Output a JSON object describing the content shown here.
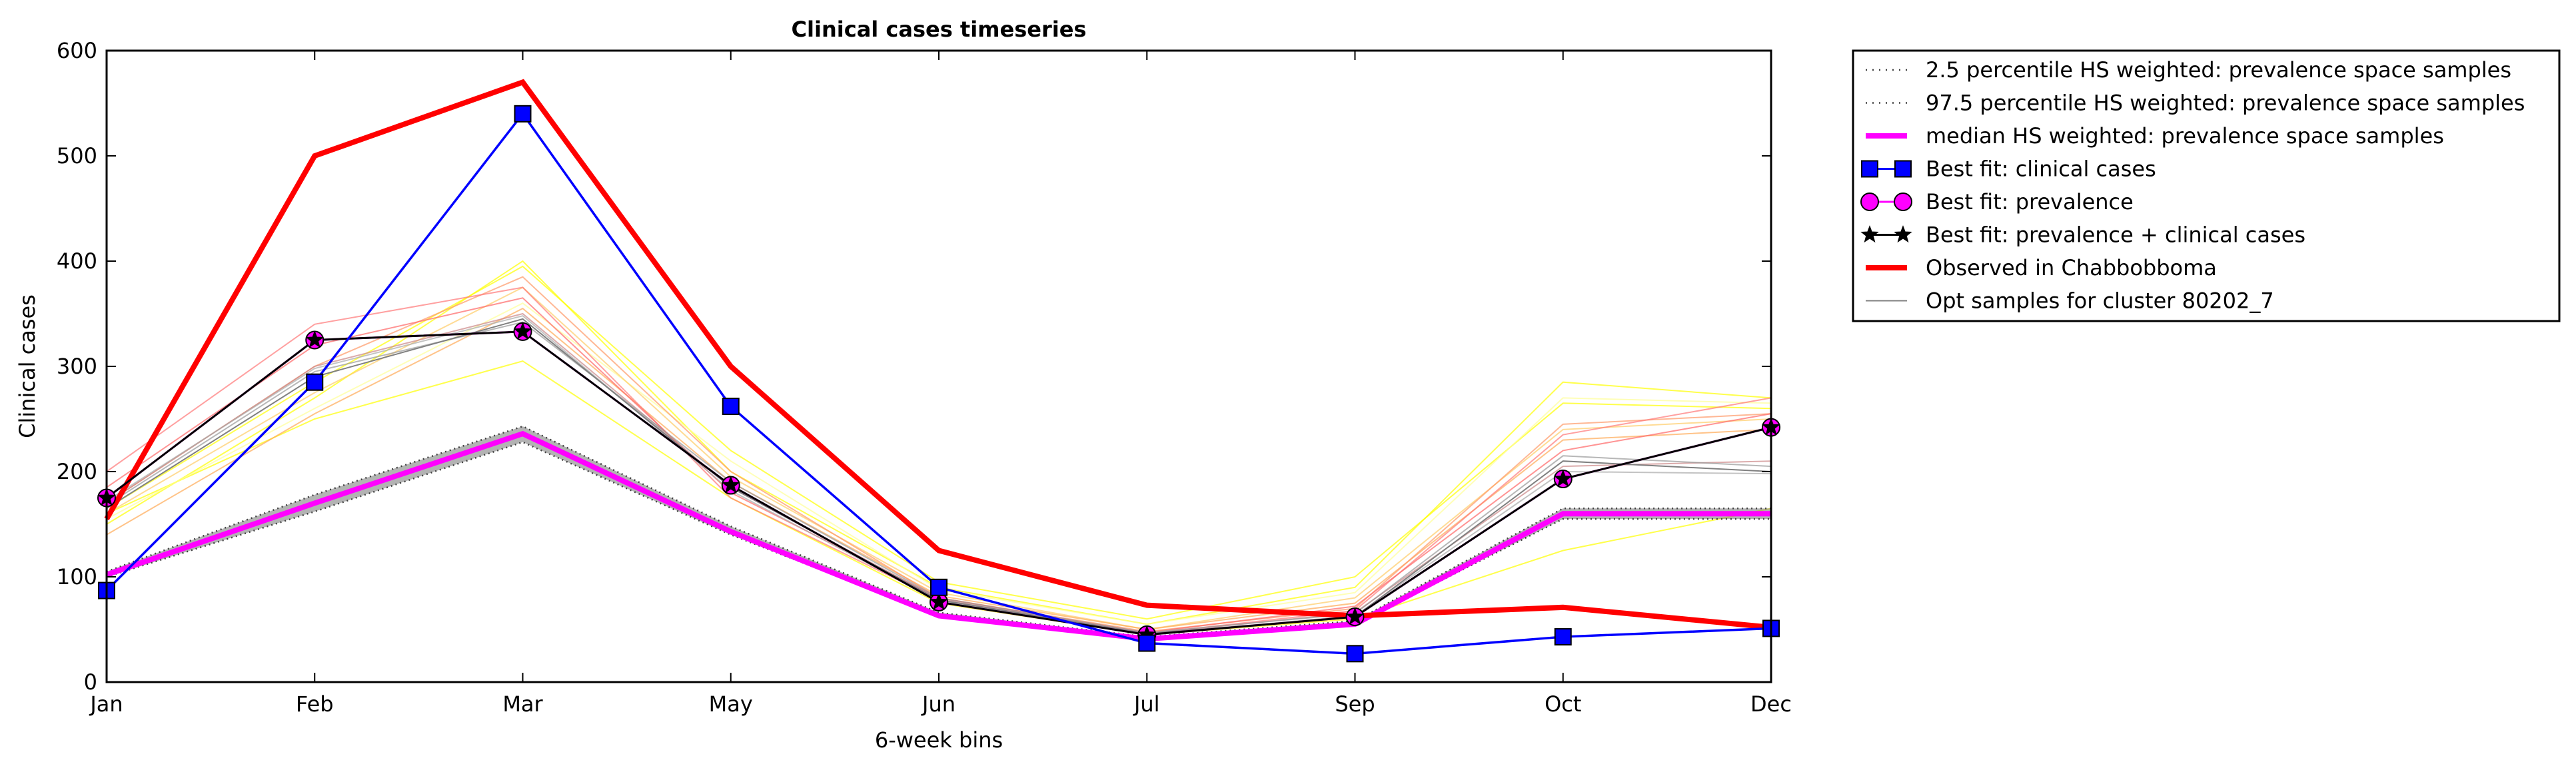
{
  "chart_data": {
    "type": "line",
    "title": "Clinical cases timeseries",
    "xlabel": "6-week bins",
    "ylabel": "Clinical cases",
    "categories": [
      "Jan",
      "Feb",
      "Mar",
      "May",
      "Jun",
      "Jul",
      "Sep",
      "Oct",
      "Dec"
    ],
    "ylim": [
      0,
      600
    ],
    "yticks": [
      0,
      100,
      200,
      300,
      400,
      500,
      600
    ],
    "grid": false,
    "legend_position": "outside-top-right",
    "series": [
      {
        "name": "2.5 percentile HS weighted: prevalence space samples",
        "style": "dotted",
        "color": "#808080",
        "values": [
          100,
          162,
          228,
          140,
          63,
          40,
          55,
          155,
          155
        ]
      },
      {
        "name": "97.5 percentile HS weighted: prevalence space samples",
        "style": "dotted",
        "color": "#808080",
        "values": [
          105,
          178,
          243,
          148,
          66,
          43,
          58,
          165,
          165
        ]
      },
      {
        "name": "median HS weighted: prevalence space samples",
        "style": "solid-thick",
        "color": "#ff00ff",
        "values": [
          102,
          170,
          236,
          143,
          63,
          41,
          55,
          160,
          160
        ]
      },
      {
        "name": "Best fit: clinical cases",
        "style": "square-markers",
        "color": "#0000ff",
        "values": [
          87,
          285,
          540,
          262,
          90,
          37,
          27,
          43,
          51
        ]
      },
      {
        "name": "Best fit: prevalence",
        "style": "circle-markers",
        "color": "#ff00ff",
        "values": [
          175,
          325,
          333,
          187,
          76,
          45,
          62,
          193,
          242
        ]
      },
      {
        "name": "Best fit: prevalence + clinical cases",
        "style": "star-markers",
        "color": "#000000",
        "values": [
          175,
          325,
          333,
          187,
          76,
          45,
          62,
          193,
          242
        ]
      },
      {
        "name": "Observed in Chabbobboma",
        "style": "solid-thick",
        "color": "#ff0000",
        "values": [
          155,
          500,
          570,
          300,
          125,
          73,
          63,
          71,
          52
        ]
      },
      {
        "name": "Opt samples for cluster 80202_7",
        "style": "thin",
        "color": "#808080",
        "values": [
          165,
          290,
          345,
          185,
          78,
          46,
          62,
          210,
          200
        ]
      }
    ],
    "opt_samples": [
      {
        "color": "#ffff00",
        "values": [
          160,
          250,
          305,
          175,
          75,
          45,
          60,
          125,
          165
        ]
      },
      {
        "color": "#ffff00",
        "values": [
          150,
          270,
          400,
          200,
          90,
          55,
          90,
          285,
          270
        ]
      },
      {
        "color": "#ffff00",
        "values": [
          165,
          285,
          395,
          220,
          95,
          60,
          100,
          265,
          260
        ]
      },
      {
        "color": "#ffff99",
        "values": [
          155,
          260,
          360,
          210,
          88,
          55,
          85,
          270,
          265
        ]
      },
      {
        "color": "#ffcc66",
        "values": [
          160,
          275,
          375,
          195,
          85,
          50,
          80,
          240,
          250
        ]
      },
      {
        "color": "#ffaa55",
        "values": [
          140,
          255,
          355,
          190,
          82,
          50,
          75,
          230,
          240
        ]
      },
      {
        "color": "#ff9966",
        "values": [
          170,
          300,
          385,
          200,
          80,
          48,
          70,
          245,
          255
        ]
      },
      {
        "color": "#ff7777",
        "values": [
          200,
          340,
          375,
          175,
          78,
          46,
          68,
          235,
          270
        ]
      },
      {
        "color": "#ff6666",
        "values": [
          185,
          320,
          365,
          180,
          80,
          47,
          72,
          220,
          255
        ]
      },
      {
        "color": "#cc8888",
        "values": [
          170,
          300,
          350,
          185,
          79,
          46,
          66,
          205,
          210
        ]
      },
      {
        "color": "#999999",
        "values": [
          168,
          295,
          342,
          190,
          80,
          47,
          65,
          215,
          205
        ]
      },
      {
        "color": "#aaaaaa",
        "values": [
          172,
          298,
          348,
          182,
          77,
          45,
          63,
          200,
          198
        ]
      }
    ]
  }
}
